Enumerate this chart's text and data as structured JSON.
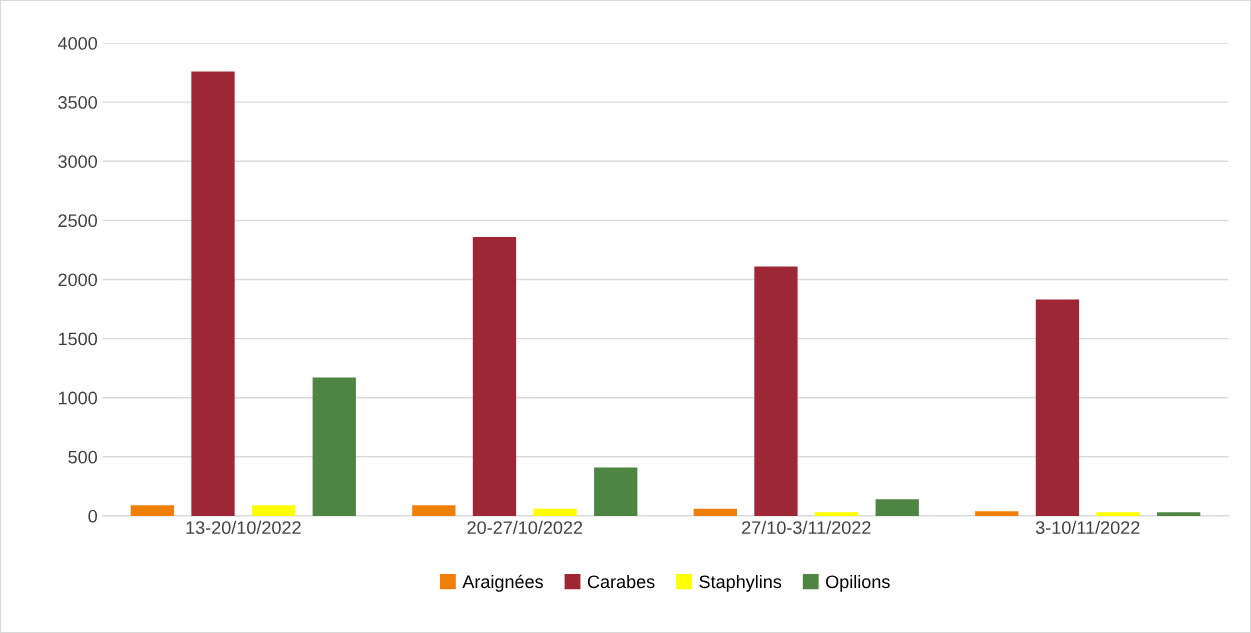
{
  "chart_data": {
    "type": "bar",
    "categories": [
      "13-20/10/2022",
      "20-27/10/2022",
      "27/10-3/11/2022",
      "3-10/11/2022"
    ],
    "series": [
      {
        "name": "Araignées",
        "color": "#f07f09",
        "values": [
          90,
          90,
          60,
          40
        ]
      },
      {
        "name": "Carabes",
        "color": "#9e2735",
        "values": [
          3760,
          2360,
          2110,
          1830
        ]
      },
      {
        "name": "Staphylins",
        "color": "#ffff00",
        "values": [
          90,
          60,
          30,
          30
        ]
      },
      {
        "name": "Opilions",
        "color": "#4e8542",
        "values": [
          1170,
          410,
          140,
          30
        ]
      }
    ],
    "ylim": [
      0,
      4000
    ],
    "yticks": [
      0,
      500,
      1000,
      1500,
      2000,
      2500,
      3000,
      3500,
      4000
    ],
    "grid": "y",
    "legend": "bottom"
  }
}
